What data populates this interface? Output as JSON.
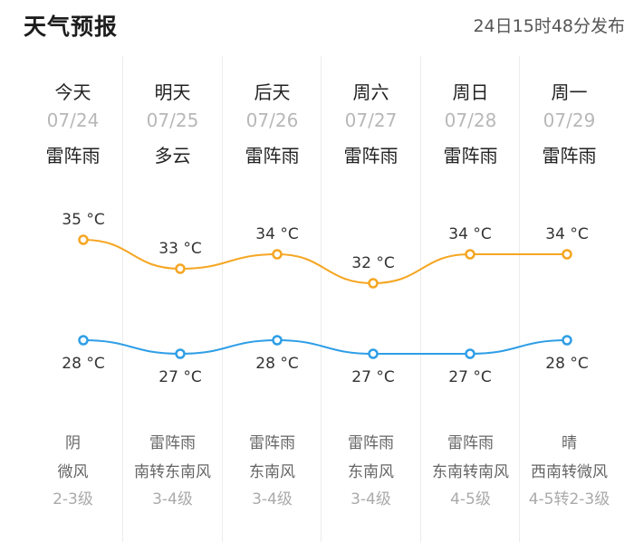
{
  "header": {
    "title": "天气预报",
    "publish_time": "24日15时48分发布"
  },
  "colors": {
    "high_line": "#f5a623",
    "low_line": "#2f9ee6"
  },
  "days": [
    {
      "day": "今天",
      "date": "07/24",
      "weather": "雷阵雨",
      "night_weather": "阴",
      "wind": "微风",
      "level": "2-3级"
    },
    {
      "day": "明天",
      "date": "07/25",
      "weather": "多云",
      "night_weather": "雷阵雨",
      "wind": "南转东南风",
      "level": "3-4级"
    },
    {
      "day": "后天",
      "date": "07/26",
      "weather": "雷阵雨",
      "night_weather": "雷阵雨",
      "wind": "东南风",
      "level": "3-4级"
    },
    {
      "day": "周六",
      "date": "07/27",
      "weather": "雷阵雨",
      "night_weather": "雷阵雨",
      "wind": "东南风",
      "level": "3-4级"
    },
    {
      "day": "周日",
      "date": "07/28",
      "weather": "雷阵雨",
      "night_weather": "雷阵雨",
      "wind": "东南转南风",
      "level": "4-5级"
    },
    {
      "day": "周一",
      "date": "07/29",
      "weather": "雷阵雨",
      "night_weather": "晴",
      "wind": "西南转微风",
      "level": "4-5转2-3级"
    }
  ],
  "chart_data": {
    "type": "line",
    "categories": [
      "07/24",
      "07/25",
      "07/26",
      "07/27",
      "07/28",
      "07/29"
    ],
    "unit": "°C",
    "series": [
      {
        "values": [
          35,
          33,
          34,
          32,
          34,
          34
        ],
        "labels": [
          "35 °C",
          "33 °C",
          "34 °C",
          "32 °C",
          "34 °C",
          "34 °C"
        ]
      },
      {
        "values": [
          28,
          27,
          28,
          27,
          27,
          28
        ],
        "labels": [
          "28 °C",
          "27 °C",
          "28 °C",
          "27 °C",
          "27 °C",
          "28 °C"
        ]
      }
    ]
  }
}
